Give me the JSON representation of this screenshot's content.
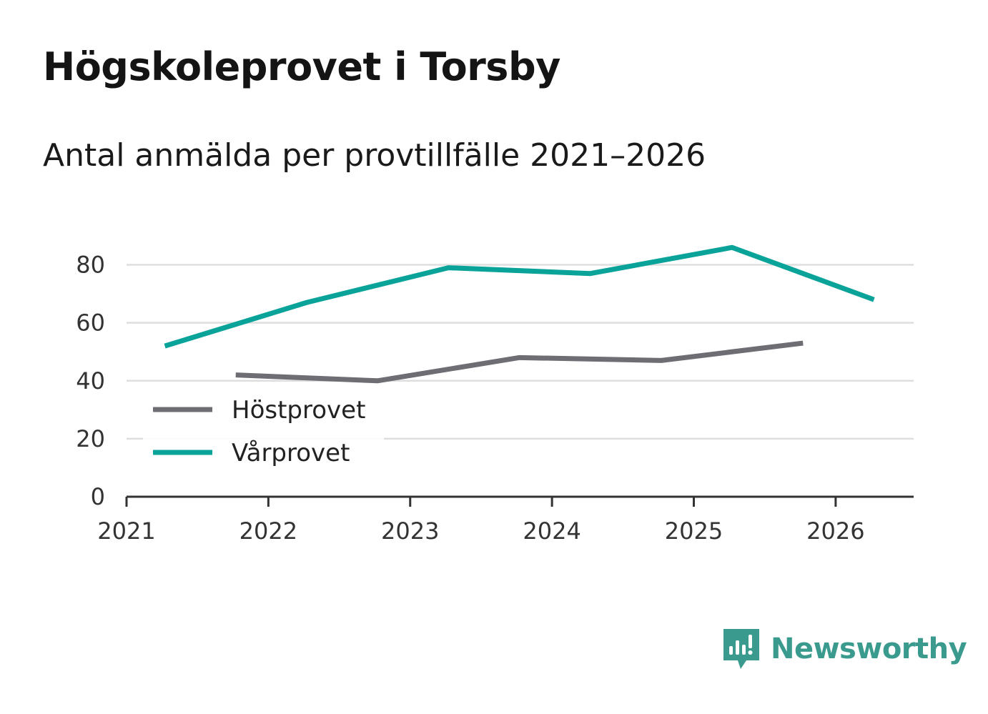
{
  "title": "Högskoleprovet i Torsby",
  "subtitle": "Antal anmälda per provtillfälle 2021–2026",
  "brand": {
    "name": "Newsworthy",
    "color": "#3a9a8e",
    "icon": "newsworthy-logo-icon"
  },
  "chart_data": {
    "type": "line",
    "title": "Högskoleprovet i Torsby",
    "subtitle": "Antal anmälda per provtillfälle 2021–2026",
    "xlabel": "",
    "ylabel": "",
    "xlim": [
      2021,
      2026.55
    ],
    "ylim": [
      0,
      90
    ],
    "x_ticks": [
      "2021",
      "2022",
      "2023",
      "2024",
      "2025",
      "2026"
    ],
    "y_ticks": [
      "0",
      "20",
      "40",
      "60",
      "80"
    ],
    "grid": true,
    "legend_position": "bottom-left",
    "series": [
      {
        "name": "Höstprovet",
        "color": "#6e6d74",
        "x": [
          2021.77,
          2022.77,
          2023.77,
          2024.77,
          2025.77
        ],
        "values": [
          42,
          40,
          48,
          47,
          53
        ]
      },
      {
        "name": "Vårprovet",
        "color": "#0aa39a",
        "x": [
          2021.27,
          2022.27,
          2023.27,
          2024.27,
          2025.27,
          2026.27
        ],
        "values": [
          52,
          67,
          79,
          77,
          86,
          68
        ]
      }
    ]
  }
}
